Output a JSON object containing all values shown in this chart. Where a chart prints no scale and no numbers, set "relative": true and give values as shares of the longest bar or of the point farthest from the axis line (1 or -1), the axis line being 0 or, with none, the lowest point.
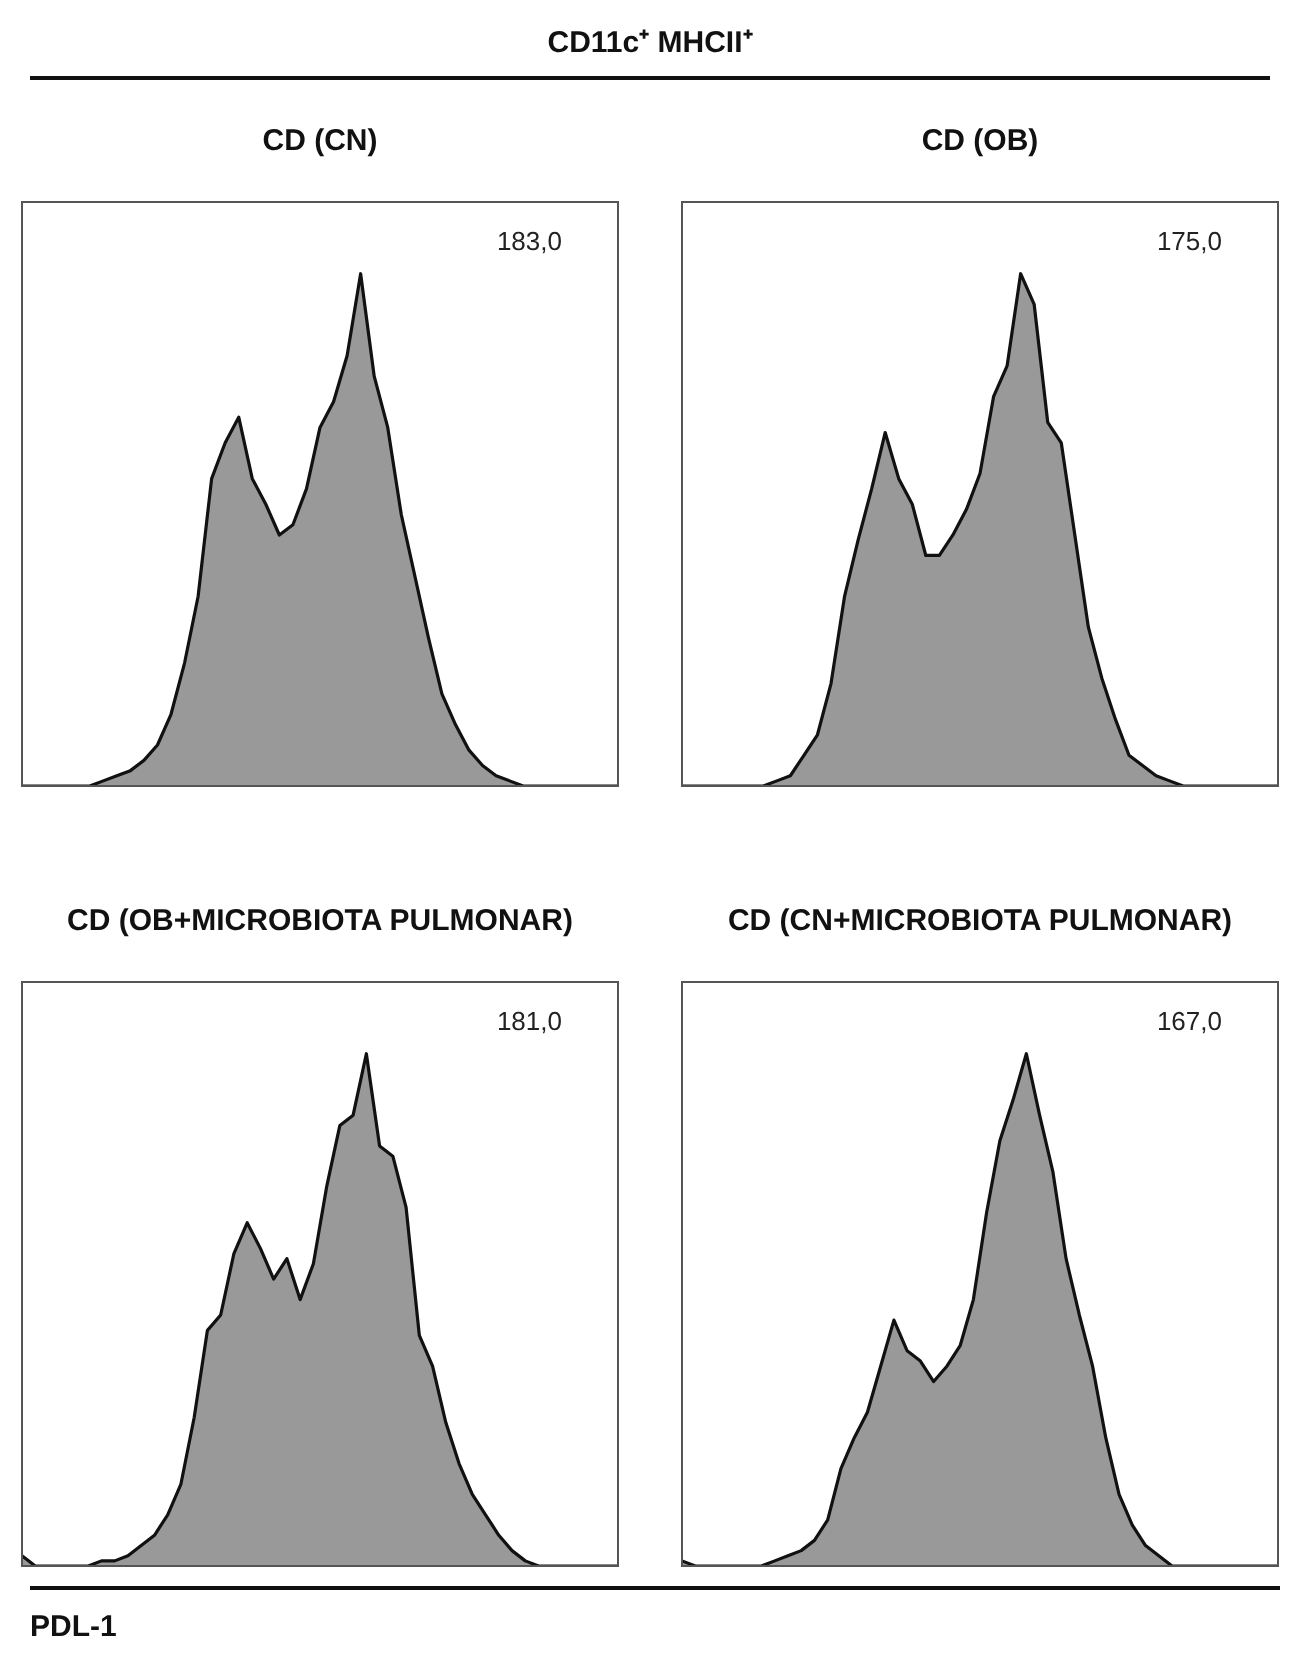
{
  "chart_data": [
    {
      "type": "other",
      "title": "CD11c⁺ MHCII⁺"
    },
    {
      "type": "area",
      "title": "CD (CN)",
      "relative": true,
      "annotations": [
        "183,0"
      ],
      "categories": [
        null,
        null,
        null,
        null,
        null,
        null,
        null,
        null,
        null,
        null,
        null,
        null,
        null,
        null,
        null,
        null,
        null,
        null,
        null,
        null,
        null,
        null,
        null,
        null,
        null,
        null,
        null,
        null,
        null,
        null,
        null,
        null,
        null,
        null,
        null,
        null,
        null,
        null,
        null,
        null,
        null,
        null,
        null,
        null,
        null
      ],
      "series": [
        {
          "color": "#999999",
          "values": [
            0,
            0,
            0,
            0,
            0,
            0,
            0.01,
            0.02,
            0.03,
            0.05,
            0.08,
            0.14,
            0.24,
            0.37,
            0.6,
            0.67,
            0.72,
            0.6,
            0.55,
            0.49,
            0.51,
            0.58,
            0.7,
            0.75,
            0.84,
            1,
            0.8,
            0.7,
            0.53,
            0.41,
            0.29,
            0.18,
            0.12,
            0.07,
            0.04,
            0.02,
            0.01,
            0,
            0,
            0,
            0,
            0,
            0,
            0,
            0
          ]
        }
      ]
    },
    {
      "type": "area",
      "title": "CD (OB)",
      "relative": true,
      "annotations": [
        "175,0"
      ],
      "categories": [
        null,
        null,
        null,
        null,
        null,
        null,
        null,
        null,
        null,
        null,
        null,
        null,
        null,
        null,
        null,
        null,
        null,
        null,
        null,
        null,
        null,
        null,
        null,
        null,
        null,
        null,
        null,
        null,
        null,
        null,
        null,
        null,
        null,
        null,
        null,
        null,
        null,
        null,
        null,
        null,
        null,
        null,
        null,
        null,
        null
      ],
      "series": [
        {
          "color": "#999999",
          "values": [
            0,
            0,
            0,
            0,
            0,
            0,
            0,
            0.01,
            0.02,
            0.06,
            0.1,
            0.2,
            0.37,
            0.48,
            0.58,
            0.69,
            0.6,
            0.55,
            0.45,
            0.45,
            0.49,
            0.54,
            0.61,
            0.76,
            0.82,
            1,
            0.94,
            0.71,
            0.67,
            0.49,
            0.31,
            0.21,
            0.13,
            0.06,
            0.04,
            0.02,
            0.01,
            0,
            0,
            0,
            0,
            0,
            0,
            0,
            0
          ]
        }
      ]
    },
    {
      "type": "area",
      "title": "CD (OB+MICROBIOTA PULMONAR)",
      "relative": true,
      "annotations": [
        "181,0"
      ],
      "categories": [
        null,
        null,
        null,
        null,
        null,
        null,
        null,
        null,
        null,
        null,
        null,
        null,
        null,
        null,
        null,
        null,
        null,
        null,
        null,
        null,
        null,
        null,
        null,
        null,
        null,
        null,
        null,
        null,
        null,
        null,
        null,
        null,
        null,
        null,
        null,
        null,
        null,
        null,
        null,
        null,
        null,
        null,
        null,
        null,
        null,
        null
      ],
      "series": [
        {
          "color": "#999999",
          "values": [
            0.02,
            0,
            0,
            0,
            0,
            0,
            0.01,
            0.01,
            0.02,
            0.04,
            0.06,
            0.1,
            0.16,
            0.29,
            0.46,
            0.49,
            0.61,
            0.67,
            0.62,
            0.56,
            0.6,
            0.52,
            0.59,
            0.74,
            0.86,
            0.88,
            1,
            0.82,
            0.8,
            0.7,
            0.45,
            0.39,
            0.28,
            0.2,
            0.14,
            0.1,
            0.06,
            0.03,
            0.01,
            0,
            0,
            0,
            0,
            0,
            0,
            0
          ]
        }
      ]
    },
    {
      "type": "area",
      "title": "CD (CN+MICROBIOTA PULMONAR)",
      "relative": true,
      "annotations": [
        "167,0"
      ],
      "categories": [
        null,
        null,
        null,
        null,
        null,
        null,
        null,
        null,
        null,
        null,
        null,
        null,
        null,
        null,
        null,
        null,
        null,
        null,
        null,
        null,
        null,
        null,
        null,
        null,
        null,
        null,
        null,
        null,
        null,
        null,
        null,
        null,
        null,
        null,
        null,
        null,
        null,
        null,
        null,
        null,
        null,
        null,
        null,
        null,
        null,
        null
      ],
      "series": [
        {
          "color": "#999999",
          "values": [
            0.01,
            0,
            0,
            0,
            0,
            0,
            0,
            0.01,
            0.02,
            0.03,
            0.05,
            0.09,
            0.19,
            0.25,
            0.3,
            0.39,
            0.48,
            0.42,
            0.4,
            0.36,
            0.39,
            0.43,
            0.52,
            0.69,
            0.83,
            0.91,
            1,
            0.88,
            0.77,
            0.6,
            0.49,
            0.39,
            0.25,
            0.14,
            0.08,
            0.04,
            0.02,
            0,
            0,
            0,
            0,
            0,
            0,
            0,
            0,
            0
          ]
        }
      ]
    },
    {
      "type": "other",
      "title": "PDL-1"
    }
  ]
}
